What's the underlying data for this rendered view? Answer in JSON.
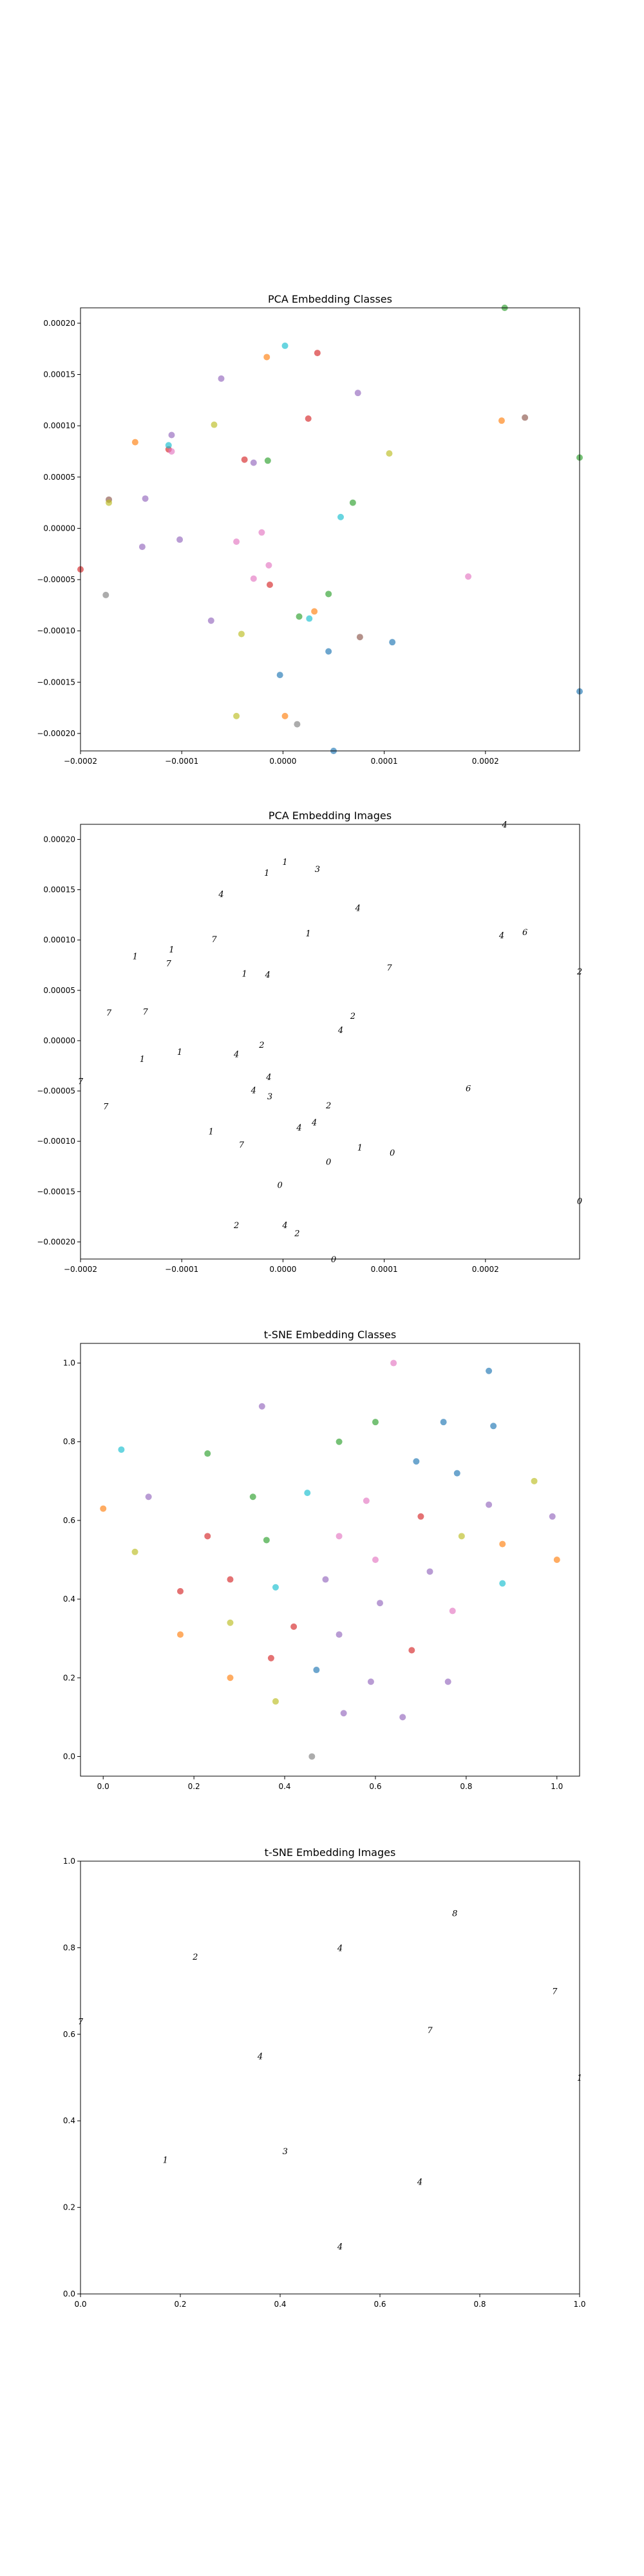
{
  "chart_data": [
    {
      "type": "scatter",
      "title": "PCA Embedding Classes",
      "xlim": [
        -0.0002,
        0.000293
      ],
      "ylim": [
        -0.000217,
        0.000215
      ],
      "xticks": [
        -0.0002,
        -0.0001,
        0.0,
        0.0001,
        0.0002
      ],
      "xtick_labels": [
        "−0.0002",
        "−0.0001",
        "0.0000",
        "0.0001",
        "0.0002"
      ],
      "yticks": [
        -0.0002,
        -0.00015,
        -0.0001,
        -5e-05,
        0.0,
        5e-05,
        0.0001,
        0.00015,
        0.0002
      ],
      "ytick_labels": [
        "−0.00020",
        "−0.00015",
        "−0.00010",
        "−0.00005",
        "0.00000",
        "0.00005",
        "0.00010",
        "0.00015",
        "0.00020"
      ],
      "points": [
        {
          "x": 0.000219,
          "y": 0.000215,
          "color": "#2ca02c"
        },
        {
          "x": 2e-06,
          "y": 0.000178,
          "color": "#17becf"
        },
        {
          "x": 3.4e-05,
          "y": 0.000171,
          "color": "#d62728"
        },
        {
          "x": -1.6e-05,
          "y": 0.000167,
          "color": "#ff7f0e"
        },
        {
          "x": -6.1e-05,
          "y": 0.000146,
          "color": "#9467bd"
        },
        {
          "x": 7.4e-05,
          "y": 0.000132,
          "color": "#9467bd"
        },
        {
          "x": 0.000239,
          "y": 0.000108,
          "color": "#8c564b"
        },
        {
          "x": 0.000216,
          "y": 0.000105,
          "color": "#ff7f0e"
        },
        {
          "x": 2.5e-05,
          "y": 0.000107,
          "color": "#d62728"
        },
        {
          "x": -6.8e-05,
          "y": 0.000101,
          "color": "#bcbd22"
        },
        {
          "x": -0.00011,
          "y": 9.1e-05,
          "color": "#9467bd"
        },
        {
          "x": -0.000146,
          "y": 8.4e-05,
          "color": "#ff7f0e"
        },
        {
          "x": -0.000113,
          "y": 7.7e-05,
          "color": "#d62728"
        },
        {
          "x": -0.00011,
          "y": 7.5e-05,
          "color": "#e377c2"
        },
        {
          "x": -0.000113,
          "y": 8.1e-05,
          "color": "#17becf"
        },
        {
          "x": 0.000105,
          "y": 7.3e-05,
          "color": "#bcbd22"
        },
        {
          "x": -3.8e-05,
          "y": 6.7e-05,
          "color": "#d62728"
        },
        {
          "x": -1.5e-05,
          "y": 6.6e-05,
          "color": "#2ca02c"
        },
        {
          "x": -2.9e-05,
          "y": 6.4e-05,
          "color": "#9467bd"
        },
        {
          "x": 0.000293,
          "y": 6.9e-05,
          "color": "#2ca02c"
        },
        {
          "x": -0.000136,
          "y": 2.9e-05,
          "color": "#9467bd"
        },
        {
          "x": -0.000172,
          "y": 2.8e-05,
          "color": "#8c564b"
        },
        {
          "x": -0.000172,
          "y": 2.5e-05,
          "color": "#bcbd22"
        },
        {
          "x": 6.9e-05,
          "y": 2.5e-05,
          "color": "#2ca02c"
        },
        {
          "x": 5.7e-05,
          "y": 1.1e-05,
          "color": "#17becf"
        },
        {
          "x": -2.1e-05,
          "y": -4e-06,
          "color": "#e377c2"
        },
        {
          "x": -0.000102,
          "y": -1.1e-05,
          "color": "#9467bd"
        },
        {
          "x": -4.6e-05,
          "y": -1.3e-05,
          "color": "#e377c2"
        },
        {
          "x": -0.000139,
          "y": -1.8e-05,
          "color": "#9467bd"
        },
        {
          "x": -1.4e-05,
          "y": -3.6e-05,
          "color": "#e377c2"
        },
        {
          "x": -0.0002,
          "y": -4e-05,
          "color": "#d62728"
        },
        {
          "x": -2.9e-05,
          "y": -4.9e-05,
          "color": "#e377c2"
        },
        {
          "x": 0.000183,
          "y": -4.7e-05,
          "color": "#e377c2"
        },
        {
          "x": -1.3e-05,
          "y": -5.5e-05,
          "color": "#d62728"
        },
        {
          "x": 4.5e-05,
          "y": -6.4e-05,
          "color": "#2ca02c"
        },
        {
          "x": -0.000175,
          "y": -6.5e-05,
          "color": "#7f7f7f"
        },
        {
          "x": 3.1e-05,
          "y": -8.1e-05,
          "color": "#ff7f0e"
        },
        {
          "x": 1.6e-05,
          "y": -8.6e-05,
          "color": "#2ca02c"
        },
        {
          "x": 2.6e-05,
          "y": -8.8e-05,
          "color": "#17becf"
        },
        {
          "x": -7.1e-05,
          "y": -9e-05,
          "color": "#9467bd"
        },
        {
          "x": -4.1e-05,
          "y": -0.000103,
          "color": "#bcbd22"
        },
        {
          "x": 7.6e-05,
          "y": -0.000106,
          "color": "#8c564b"
        },
        {
          "x": 0.000108,
          "y": -0.000111,
          "color": "#1f77b4"
        },
        {
          "x": 4.5e-05,
          "y": -0.00012,
          "color": "#1f77b4"
        },
        {
          "x": -3e-06,
          "y": -0.000143,
          "color": "#1f77b4"
        },
        {
          "x": 0.000293,
          "y": -0.000159,
          "color": "#1f77b4"
        },
        {
          "x": -4.6e-05,
          "y": -0.000183,
          "color": "#bcbd22"
        },
        {
          "x": 2e-06,
          "y": -0.000183,
          "color": "#ff7f0e"
        },
        {
          "x": 1.4e-05,
          "y": -0.000191,
          "color": "#7f7f7f"
        },
        {
          "x": 5e-05,
          "y": -0.000217,
          "color": "#1f77b4"
        }
      ]
    },
    {
      "type": "scatter",
      "title": "PCA Embedding Images",
      "xlim": [
        -0.0002,
        0.000293
      ],
      "ylim": [
        -0.000217,
        0.000215
      ],
      "xticks": [
        -0.0002,
        -0.0001,
        0.0,
        0.0001,
        0.0002
      ],
      "xtick_labels": [
        "−0.0002",
        "−0.0001",
        "0.0000",
        "0.0001",
        "0.0002"
      ],
      "yticks": [
        -0.0002,
        -0.00015,
        -0.0001,
        -5e-05,
        0.0,
        5e-05,
        0.0001,
        0.00015,
        0.0002
      ],
      "ytick_labels": [
        "−0.00020",
        "−0.00015",
        "−0.00010",
        "−0.00005",
        "0.00000",
        "0.00005",
        "0.00010",
        "0.00015",
        "0.00020"
      ],
      "points": [
        {
          "x": 0.000219,
          "y": 0.000215,
          "glyph": "4"
        },
        {
          "x": 2e-06,
          "y": 0.000178,
          "glyph": "1"
        },
        {
          "x": 3.4e-05,
          "y": 0.000171,
          "glyph": "3"
        },
        {
          "x": -1.6e-05,
          "y": 0.000167,
          "glyph": "1"
        },
        {
          "x": -6.1e-05,
          "y": 0.000146,
          "glyph": "4"
        },
        {
          "x": 7.4e-05,
          "y": 0.000132,
          "glyph": "4"
        },
        {
          "x": 0.000239,
          "y": 0.000108,
          "glyph": "6"
        },
        {
          "x": 0.000216,
          "y": 0.000105,
          "glyph": "4"
        },
        {
          "x": 2.5e-05,
          "y": 0.000107,
          "glyph": "1"
        },
        {
          "x": -6.8e-05,
          "y": 0.000101,
          "glyph": "7"
        },
        {
          "x": -0.00011,
          "y": 9.1e-05,
          "glyph": "1"
        },
        {
          "x": -0.000146,
          "y": 8.4e-05,
          "glyph": "1"
        },
        {
          "x": -0.000113,
          "y": 7.7e-05,
          "glyph": "7"
        },
        {
          "x": 0.000105,
          "y": 7.3e-05,
          "glyph": "7"
        },
        {
          "x": -3.8e-05,
          "y": 6.7e-05,
          "glyph": "1"
        },
        {
          "x": -1.5e-05,
          "y": 6.6e-05,
          "glyph": "4"
        },
        {
          "x": 0.000293,
          "y": 6.9e-05,
          "glyph": "2"
        },
        {
          "x": -0.000136,
          "y": 2.9e-05,
          "glyph": "7"
        },
        {
          "x": -0.000172,
          "y": 2.8e-05,
          "glyph": "7"
        },
        {
          "x": 6.9e-05,
          "y": 2.5e-05,
          "glyph": "2"
        },
        {
          "x": 5.7e-05,
          "y": 1.1e-05,
          "glyph": "4"
        },
        {
          "x": -2.1e-05,
          "y": -4e-06,
          "glyph": "2"
        },
        {
          "x": -0.000102,
          "y": -1.1e-05,
          "glyph": "1"
        },
        {
          "x": -4.6e-05,
          "y": -1.3e-05,
          "glyph": "4"
        },
        {
          "x": -0.000139,
          "y": -1.8e-05,
          "glyph": "1"
        },
        {
          "x": -1.4e-05,
          "y": -3.6e-05,
          "glyph": "4"
        },
        {
          "x": -0.0002,
          "y": -4e-05,
          "glyph": "7"
        },
        {
          "x": -2.9e-05,
          "y": -4.9e-05,
          "glyph": "4"
        },
        {
          "x": 0.000183,
          "y": -4.7e-05,
          "glyph": "6"
        },
        {
          "x": -1.3e-05,
          "y": -5.5e-05,
          "glyph": "3"
        },
        {
          "x": 4.5e-05,
          "y": -6.4e-05,
          "glyph": "2"
        },
        {
          "x": -0.000175,
          "y": -6.5e-05,
          "glyph": "7"
        },
        {
          "x": 3.1e-05,
          "y": -8.1e-05,
          "glyph": "4"
        },
        {
          "x": 1.6e-05,
          "y": -8.6e-05,
          "glyph": "4"
        },
        {
          "x": -7.1e-05,
          "y": -9e-05,
          "glyph": "1"
        },
        {
          "x": -4.1e-05,
          "y": -0.000103,
          "glyph": "7"
        },
        {
          "x": 7.6e-05,
          "y": -0.000106,
          "glyph": "1"
        },
        {
          "x": 0.000108,
          "y": -0.000111,
          "glyph": "0"
        },
        {
          "x": 4.5e-05,
          "y": -0.00012,
          "glyph": "0"
        },
        {
          "x": -3e-06,
          "y": -0.000143,
          "glyph": "0"
        },
        {
          "x": 0.000293,
          "y": -0.000159,
          "glyph": "0"
        },
        {
          "x": -4.6e-05,
          "y": -0.000183,
          "glyph": "2"
        },
        {
          "x": 2e-06,
          "y": -0.000183,
          "glyph": "4"
        },
        {
          "x": 1.4e-05,
          "y": -0.000191,
          "glyph": "2"
        },
        {
          "x": 5e-05,
          "y": -0.000217,
          "glyph": "0"
        }
      ]
    },
    {
      "type": "scatter",
      "title": "t-SNE Embedding Classes",
      "xlim": [
        -0.05,
        1.05
      ],
      "ylim": [
        -0.05,
        1.05
      ],
      "xticks": [
        0.0,
        0.2,
        0.4,
        0.6,
        0.8,
        1.0
      ],
      "xtick_labels": [
        "0.0",
        "0.2",
        "0.4",
        "0.6",
        "0.8",
        "1.0"
      ],
      "yticks": [
        0.0,
        0.2,
        0.4,
        0.6,
        0.8,
        1.0
      ],
      "ytick_labels": [
        "0.0",
        "0.2",
        "0.4",
        "0.6",
        "0.8",
        "1.0"
      ],
      "points": [
        {
          "x": 0.64,
          "y": 1.0,
          "color": "#e377c2"
        },
        {
          "x": 0.85,
          "y": 0.98,
          "color": "#1f77b4"
        },
        {
          "x": 0.35,
          "y": 0.89,
          "color": "#9467bd"
        },
        {
          "x": 0.6,
          "y": 0.85,
          "color": "#2ca02c"
        },
        {
          "x": 0.75,
          "y": 0.85,
          "color": "#1f77b4"
        },
        {
          "x": 0.86,
          "y": 0.84,
          "color": "#1f77b4"
        },
        {
          "x": 0.52,
          "y": 0.8,
          "color": "#2ca02c"
        },
        {
          "x": 0.04,
          "y": 0.78,
          "color": "#17becf"
        },
        {
          "x": 0.23,
          "y": 0.77,
          "color": "#2ca02c"
        },
        {
          "x": 0.69,
          "y": 0.75,
          "color": "#1f77b4"
        },
        {
          "x": 0.78,
          "y": 0.72,
          "color": "#1f77b4"
        },
        {
          "x": 0.95,
          "y": 0.7,
          "color": "#bcbd22"
        },
        {
          "x": 0.1,
          "y": 0.66,
          "color": "#9467bd"
        },
        {
          "x": 0.45,
          "y": 0.67,
          "color": "#17becf"
        },
        {
          "x": 0.33,
          "y": 0.66,
          "color": "#2ca02c"
        },
        {
          "x": 0.58,
          "y": 0.65,
          "color": "#e377c2"
        },
        {
          "x": 0.85,
          "y": 0.64,
          "color": "#9467bd"
        },
        {
          "x": 0.0,
          "y": 0.63,
          "color": "#ff7f0e"
        },
        {
          "x": 0.99,
          "y": 0.61,
          "color": "#9467bd"
        },
        {
          "x": 0.7,
          "y": 0.61,
          "color": "#d62728"
        },
        {
          "x": 0.23,
          "y": 0.56,
          "color": "#d62728"
        },
        {
          "x": 0.52,
          "y": 0.56,
          "color": "#e377c2"
        },
        {
          "x": 0.36,
          "y": 0.55,
          "color": "#2ca02c"
        },
        {
          "x": 0.79,
          "y": 0.56,
          "color": "#bcbd22"
        },
        {
          "x": 0.88,
          "y": 0.54,
          "color": "#ff7f0e"
        },
        {
          "x": 0.07,
          "y": 0.52,
          "color": "#bcbd22"
        },
        {
          "x": 0.6,
          "y": 0.5,
          "color": "#e377c2"
        },
        {
          "x": 1.0,
          "y": 0.5,
          "color": "#ff7f0e"
        },
        {
          "x": 0.72,
          "y": 0.47,
          "color": "#9467bd"
        },
        {
          "x": 0.28,
          "y": 0.45,
          "color": "#d62728"
        },
        {
          "x": 0.49,
          "y": 0.45,
          "color": "#9467bd"
        },
        {
          "x": 0.38,
          "y": 0.43,
          "color": "#17becf"
        },
        {
          "x": 0.88,
          "y": 0.44,
          "color": "#17becf"
        },
        {
          "x": 0.17,
          "y": 0.42,
          "color": "#d62728"
        },
        {
          "x": 0.61,
          "y": 0.39,
          "color": "#9467bd"
        },
        {
          "x": 0.77,
          "y": 0.37,
          "color": "#e377c2"
        },
        {
          "x": 0.28,
          "y": 0.34,
          "color": "#bcbd22"
        },
        {
          "x": 0.42,
          "y": 0.33,
          "color": "#d62728"
        },
        {
          "x": 0.17,
          "y": 0.31,
          "color": "#ff7f0e"
        },
        {
          "x": 0.52,
          "y": 0.31,
          "color": "#9467bd"
        },
        {
          "x": 0.68,
          "y": 0.27,
          "color": "#d62728"
        },
        {
          "x": 0.37,
          "y": 0.25,
          "color": "#d62728"
        },
        {
          "x": 0.47,
          "y": 0.22,
          "color": "#1f77b4"
        },
        {
          "x": 0.28,
          "y": 0.2,
          "color": "#ff7f0e"
        },
        {
          "x": 0.59,
          "y": 0.19,
          "color": "#9467bd"
        },
        {
          "x": 0.76,
          "y": 0.19,
          "color": "#9467bd"
        },
        {
          "x": 0.38,
          "y": 0.14,
          "color": "#bcbd22"
        },
        {
          "x": 0.53,
          "y": 0.11,
          "color": "#9467bd"
        },
        {
          "x": 0.66,
          "y": 0.1,
          "color": "#9467bd"
        },
        {
          "x": 0.46,
          "y": 0.0,
          "color": "#7f7f7f"
        }
      ]
    },
    {
      "type": "scatter",
      "title": "t-SNE Embedding Images",
      "xlim": [
        0.0,
        1.0
      ],
      "ylim": [
        0.0,
        1.0
      ],
      "xticks": [
        0.0,
        0.2,
        0.4,
        0.6,
        0.8,
        1.0
      ],
      "xtick_labels": [
        "0.0",
        "0.2",
        "0.4",
        "0.6",
        "0.8",
        "1.0"
      ],
      "yticks": [
        0.0,
        0.2,
        0.4,
        0.6,
        0.8,
        1.0
      ],
      "ytick_labels": [
        "0.0",
        "0.2",
        "0.4",
        "0.6",
        "0.8",
        "1.0"
      ],
      "points": [
        {
          "x": 0.75,
          "y": 0.88,
          "glyph": "8"
        },
        {
          "x": 0.52,
          "y": 0.8,
          "glyph": "4"
        },
        {
          "x": 0.23,
          "y": 0.78,
          "glyph": "2"
        },
        {
          "x": 0.95,
          "y": 0.7,
          "glyph": "7"
        },
        {
          "x": 0.0,
          "y": 0.63,
          "glyph": "7"
        },
        {
          "x": 0.7,
          "y": 0.61,
          "glyph": "7"
        },
        {
          "x": 0.36,
          "y": 0.55,
          "glyph": "4"
        },
        {
          "x": 1.0,
          "y": 0.5,
          "glyph": "1"
        },
        {
          "x": 0.17,
          "y": 0.31,
          "glyph": "1"
        },
        {
          "x": 0.41,
          "y": 0.33,
          "glyph": "3"
        },
        {
          "x": 0.68,
          "y": 0.26,
          "glyph": "4"
        },
        {
          "x": 0.52,
          "y": 0.11,
          "glyph": "4"
        }
      ]
    }
  ]
}
